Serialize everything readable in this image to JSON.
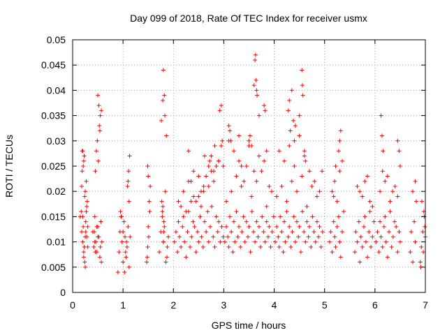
{
  "chart_data": {
    "type": "scatter",
    "title": "Day 099 of 2018, Rate Of TEC Index for receiver usmx",
    "xlabel": "GPS time / hours",
    "ylabel": "ROTI / TECUs",
    "xlim": [
      0,
      7
    ],
    "ylim": [
      0,
      0.05
    ],
    "xticks": [
      0,
      1,
      2,
      3,
      4,
      5,
      6,
      7
    ],
    "xtick_labels": [
      "0",
      "1",
      "2",
      "3",
      "4",
      "5",
      "6",
      "7"
    ],
    "yticks": [
      0,
      0.005,
      0.01,
      0.015,
      0.02,
      0.025,
      0.03,
      0.035,
      0.04,
      0.045,
      0.05
    ],
    "ytick_labels": [
      "0",
      "0.005",
      "0.01",
      "0.015",
      "0.02",
      "0.025",
      "0.03",
      "0.035",
      "0.04",
      "0.045",
      "0.05"
    ],
    "grid": true,
    "marker": "+",
    "color": "#ff0000",
    "series": [
      {
        "name": "ROTI",
        "x": [
          0.15,
          0.18,
          0.2,
          0.22,
          0.24,
          0.26,
          0.28,
          0.3,
          0.17,
          0.21,
          0.25,
          0.27,
          0.29,
          0.19,
          0.23,
          0.2,
          0.22,
          0.25,
          0.18,
          0.28,
          0.24,
          0.21,
          0.26,
          0.23,
          0.3,
          0.19,
          0.22,
          0.27,
          0.25,
          0.2,
          0.4,
          0.42,
          0.44,
          0.46,
          0.48,
          0.5,
          0.52,
          0.54,
          0.56,
          0.58,
          0.45,
          0.49,
          0.53,
          0.47,
          0.51,
          0.55,
          0.57,
          0.43,
          0.5,
          0.52,
          0.54,
          0.56,
          0.55,
          0.57,
          0.5,
          0.48,
          0.45,
          0.44,
          0.9,
          0.92,
          0.94,
          0.96,
          0.98,
          1.0,
          1.02,
          1.04,
          1.06,
          1.08,
          1.1,
          1.12,
          0.95,
          1.0,
          1.05,
          1.09,
          1.11,
          1.13,
          1.07,
          1.03,
          0.97,
          1.1,
          1.12,
          1.14,
          1.47,
          1.49,
          1.5,
          1.52,
          1.54,
          1.48,
          1.51,
          1.53,
          1.5,
          1.49,
          1.72,
          1.75,
          1.78,
          1.8,
          1.82,
          1.85,
          1.88,
          1.9,
          1.77,
          1.81,
          1.84,
          1.87,
          1.79,
          1.83,
          1.76,
          1.86,
          1.8,
          1.82,
          1.78,
          1.81,
          1.8,
          1.79,
          2.02,
          2.05,
          2.08,
          2.1,
          2.12,
          2.15,
          2.18,
          2.2,
          2.22,
          2.25,
          2.28,
          2.3,
          2.33,
          2.36,
          2.39,
          2.42,
          2.45,
          2.48,
          2.5,
          2.53,
          2.56,
          2.59,
          2.62,
          2.65,
          2.68,
          2.7,
          2.73,
          2.76,
          2.79,
          2.82,
          2.85,
          2.88,
          2.9,
          2.93,
          2.96,
          2.99,
          2.1,
          2.2,
          2.3,
          2.4,
          2.5,
          2.6,
          2.7,
          2.8,
          2.9,
          2.15,
          2.25,
          2.35,
          2.45,
          2.55,
          2.65,
          2.75,
          2.85,
          2.95,
          2.3,
          2.5,
          2.7,
          2.9,
          2.4,
          2.6,
          2.8,
          2.35,
          2.55,
          2.75,
          2.62,
          2.72,
          2.82,
          2.92,
          2.95,
          2.97,
          2.99,
          3.02,
          3.05,
          3.08,
          3.1,
          3.12,
          3.15,
          3.18,
          3.2,
          3.22,
          3.25,
          3.28,
          3.3,
          3.33,
          3.36,
          3.39,
          3.42,
          3.45,
          3.48,
          3.5,
          3.53,
          3.56,
          3.59,
          3.62,
          3.65,
          3.68,
          3.7,
          3.73,
          3.76,
          3.79,
          3.82,
          3.85,
          3.88,
          3.9,
          3.93,
          3.96,
          3.99,
          3.05,
          3.15,
          3.25,
          3.35,
          3.45,
          3.55,
          3.65,
          3.75,
          3.85,
          3.95,
          3.1,
          3.2,
          3.3,
          3.4,
          3.5,
          3.6,
          3.7,
          3.8,
          3.9,
          3.62,
          3.63,
          3.64,
          3.65,
          3.66,
          3.1,
          3.12,
          3.14,
          3.5,
          3.52,
          3.55,
          3.8,
          3.82,
          3.85,
          3.3,
          3.35,
          3.6,
          3.7,
          4.02,
          4.05,
          4.08,
          4.1,
          4.12,
          4.15,
          4.18,
          4.2,
          4.22,
          4.25,
          4.28,
          4.3,
          4.33,
          4.36,
          4.39,
          4.42,
          4.45,
          4.48,
          4.5,
          4.53,
          4.56,
          4.59,
          4.62,
          4.65,
          4.68,
          4.7,
          4.73,
          4.76,
          4.79,
          4.82,
          4.85,
          4.88,
          4.9,
          4.93,
          4.96,
          4.05,
          4.15,
          4.25,
          4.35,
          4.45,
          4.55,
          4.65,
          4.75,
          4.85,
          4.95,
          4.1,
          4.2,
          4.3,
          4.4,
          4.5,
          4.6,
          4.7,
          4.8,
          4.9,
          4.28,
          4.3,
          4.32,
          4.35,
          4.38,
          4.42,
          4.55,
          4.56,
          4.57,
          4.6,
          4.62,
          4.4,
          4.5,
          5.1,
          5.12,
          5.15,
          5.18,
          5.2,
          5.22,
          5.25,
          5.28,
          5.3,
          5.32,
          5.35,
          5.38,
          5.15,
          5.2,
          5.25,
          5.3,
          5.35,
          5.28,
          5.3,
          5.32,
          5.22,
          5.18,
          5.6,
          5.62,
          5.65,
          5.68,
          5.7,
          5.72,
          5.75,
          5.78,
          5.8,
          5.82,
          5.85,
          5.88,
          5.9,
          5.92,
          5.95,
          5.98,
          5.7,
          5.8,
          5.9,
          5.65,
          5.75,
          5.85,
          5.95,
          6.02,
          6.05,
          6.08,
          6.1,
          6.12,
          6.15,
          6.18,
          6.2,
          6.22,
          6.25,
          6.28,
          6.3,
          6.33,
          6.36,
          6.39,
          6.42,
          6.45,
          6.48,
          6.5,
          6.1,
          6.2,
          6.3,
          6.4,
          6.15,
          6.25,
          6.35,
          6.45,
          6.12,
          6.14,
          6.16,
          6.45,
          6.48,
          6.5,
          6.7,
          6.72,
          6.75,
          6.78,
          6.8,
          6.82,
          6.75,
          6.8,
          6.9,
          6.92,
          6.95,
          6.98,
          7.0,
          6.93,
          6.96,
          6.99,
          6.91,
          6.97
        ],
        "y": [
          0.015,
          0.012,
          0.01,
          0.008,
          0.006,
          0.014,
          0.011,
          0.009,
          0.016,
          0.013,
          0.02,
          0.022,
          0.018,
          0.024,
          0.027,
          0.028,
          0.007,
          0.005,
          0.021,
          0.017,
          0.019,
          0.025,
          0.012,
          0.009,
          0.013,
          0.028,
          0.026,
          0.016,
          0.011,
          0.015,
          0.012,
          0.009,
          0.015,
          0.01,
          0.008,
          0.013,
          0.011,
          0.007,
          0.014,
          0.01,
          0.024,
          0.03,
          0.033,
          0.028,
          0.026,
          0.035,
          0.036,
          0.012,
          0.039,
          0.037,
          0.032,
          0.014,
          0.009,
          0.006,
          0.011,
          0.013,
          0.008,
          0.01,
          0.004,
          0.008,
          0.012,
          0.015,
          0.01,
          0.006,
          0.014,
          0.011,
          0.007,
          0.009,
          0.013,
          0.005,
          0.016,
          0.012,
          0.008,
          0.021,
          0.024,
          0.027,
          0.01,
          0.004,
          0.015,
          0.022,
          0.018,
          0.011,
          0.006,
          0.009,
          0.013,
          0.018,
          0.021,
          0.007,
          0.011,
          0.016,
          0.023,
          0.025,
          0.008,
          0.012,
          0.015,
          0.01,
          0.013,
          0.006,
          0.009,
          0.011,
          0.018,
          0.014,
          0.02,
          0.007,
          0.038,
          0.035,
          0.034,
          0.031,
          0.044,
          0.039,
          0.016,
          0.012,
          0.01,
          0.017,
          0.01,
          0.012,
          0.008,
          0.014,
          0.011,
          0.009,
          0.013,
          0.015,
          0.01,
          0.007,
          0.012,
          0.016,
          0.009,
          0.011,
          0.014,
          0.013,
          0.008,
          0.012,
          0.01,
          0.015,
          0.011,
          0.009,
          0.014,
          0.012,
          0.016,
          0.01,
          0.013,
          0.017,
          0.011,
          0.009,
          0.015,
          0.012,
          0.014,
          0.01,
          0.013,
          0.011,
          0.018,
          0.02,
          0.022,
          0.019,
          0.023,
          0.021,
          0.025,
          0.024,
          0.026,
          0.017,
          0.016,
          0.022,
          0.018,
          0.02,
          0.023,
          0.027,
          0.025,
          0.029,
          0.028,
          0.019,
          0.021,
          0.026,
          0.024,
          0.02,
          0.022,
          0.018,
          0.017,
          0.024,
          0.027,
          0.026,
          0.029,
          0.036,
          0.037,
          0.03,
          0.025,
          0.01,
          0.013,
          0.011,
          0.009,
          0.015,
          0.012,
          0.008,
          0.014,
          0.01,
          0.016,
          0.011,
          0.013,
          0.009,
          0.012,
          0.015,
          0.01,
          0.014,
          0.011,
          0.013,
          0.008,
          0.016,
          0.012,
          0.01,
          0.014,
          0.011,
          0.013,
          0.009,
          0.015,
          0.012,
          0.01,
          0.014,
          0.011,
          0.013,
          0.009,
          0.012,
          0.015,
          0.018,
          0.02,
          0.023,
          0.021,
          0.025,
          0.019,
          0.022,
          0.024,
          0.017,
          0.02,
          0.03,
          0.028,
          0.031,
          0.022,
          0.029,
          0.024,
          0.027,
          0.026,
          0.021,
          0.046,
          0.047,
          0.042,
          0.04,
          0.039,
          0.033,
          0.032,
          0.03,
          0.03,
          0.031,
          0.029,
          0.037,
          0.036,
          0.028,
          0.026,
          0.025,
          0.041,
          0.035,
          0.01,
          0.013,
          0.011,
          0.009,
          0.015,
          0.012,
          0.008,
          0.014,
          0.01,
          0.016,
          0.011,
          0.013,
          0.009,
          0.012,
          0.015,
          0.01,
          0.014,
          0.011,
          0.013,
          0.008,
          0.016,
          0.012,
          0.01,
          0.014,
          0.011,
          0.013,
          0.009,
          0.015,
          0.012,
          0.01,
          0.014,
          0.011,
          0.013,
          0.009,
          0.012,
          0.019,
          0.021,
          0.018,
          0.022,
          0.02,
          0.023,
          0.017,
          0.021,
          0.019,
          0.024,
          0.028,
          0.026,
          0.029,
          0.025,
          0.031,
          0.027,
          0.024,
          0.022,
          0.02,
          0.036,
          0.038,
          0.032,
          0.04,
          0.034,
          0.033,
          0.044,
          0.041,
          0.039,
          0.028,
          0.026,
          0.03,
          0.035,
          0.01,
          0.012,
          0.008,
          0.014,
          0.011,
          0.009,
          0.013,
          0.015,
          0.01,
          0.007,
          0.012,
          0.016,
          0.02,
          0.022,
          0.018,
          0.024,
          0.026,
          0.028,
          0.03,
          0.032,
          0.025,
          0.019,
          0.008,
          0.012,
          0.01,
          0.014,
          0.006,
          0.011,
          0.009,
          0.013,
          0.015,
          0.01,
          0.007,
          0.012,
          0.016,
          0.009,
          0.011,
          0.014,
          0.02,
          0.022,
          0.018,
          0.021,
          0.019,
          0.023,
          0.017,
          0.01,
          0.012,
          0.008,
          0.014,
          0.011,
          0.009,
          0.013,
          0.015,
          0.01,
          0.007,
          0.012,
          0.016,
          0.009,
          0.011,
          0.014,
          0.013,
          0.008,
          0.012,
          0.01,
          0.02,
          0.022,
          0.018,
          0.021,
          0.024,
          0.023,
          0.02,
          0.019,
          0.035,
          0.031,
          0.028,
          0.03,
          0.028,
          0.025,
          0.008,
          0.012,
          0.006,
          0.014,
          0.01,
          0.018,
          0.02,
          0.022,
          0.006,
          0.009,
          0.012,
          0.015,
          0.011,
          0.018,
          0.008,
          0.013,
          0.005,
          0.016
        ]
      }
    ]
  }
}
